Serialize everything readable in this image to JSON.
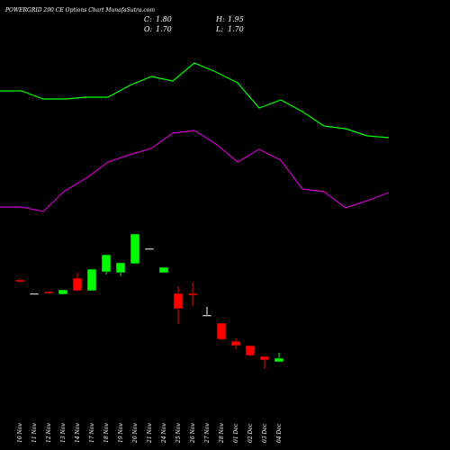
{
  "chart_data": {
    "type": "candlestick",
    "title": "POWERGRID 290  CE Options  Chart MunafaSutra.com",
    "quote": [
      {
        "label": "C:",
        "value": "1.80"
      },
      {
        "label": "H:",
        "value": "1.95"
      },
      {
        "label": "O:",
        "value": "1.70"
      },
      {
        "label": "L:",
        "value": "1.70"
      }
    ],
    "categories": [
      "10 Nov",
      "11 Nov",
      "12 Nov",
      "13 Nov",
      "14 Nov",
      "17 Nov",
      "18 Nov",
      "19 Nov",
      "20 Nov",
      "21 Nov",
      "24 Nov",
      "25 Nov",
      "26 Nov",
      "27 Nov",
      "28 Nov",
      "01 Dec",
      "02 Dec",
      "03 Dec",
      "04 Dec"
    ],
    "open": [
      3.975,
      3.6,
      3.65,
      3.575,
      4.025,
      3.675,
      4.2,
      4.175,
      4.425,
      4.85,
      4.175,
      3.6,
      3.6,
      3.0,
      2.775,
      2.275,
      2.15,
      1.85,
      1.7
    ],
    "high": [
      4.025,
      3.6,
      3.65,
      3.7,
      4.175,
      4.275,
      4.675,
      4.45,
      5.25,
      4.85,
      4.325,
      3.8,
      3.9,
      3.225,
      2.775,
      2.35,
      2.15,
      1.85,
      1.95
    ],
    "low": [
      3.9,
      3.6,
      3.6,
      3.575,
      3.675,
      3.675,
      4.125,
      4.075,
      4.425,
      4.85,
      4.175,
      2.75,
      3.25,
      3.0,
      2.3,
      2.05,
      1.85,
      1.5,
      1.7
    ],
    "close": [
      3.925,
      3.6,
      3.6,
      3.7,
      3.675,
      4.275,
      4.675,
      4.45,
      5.25,
      4.85,
      4.325,
      3.175,
      3.55,
      3.0,
      2.325,
      2.15,
      1.875,
      1.75,
      1.8
    ],
    "up_color": "#00ff00",
    "down_color": "#ff0000",
    "doji_color": "#ffffff",
    "series": [
      {
        "color": "#00ff00",
        "values": [
          9.225,
          9.225,
          9.0,
          9.0,
          9.05,
          9.05,
          9.375,
          9.625,
          9.5,
          10.0,
          9.75,
          9.45,
          8.75,
          8.975,
          8.65,
          8.25,
          8.175,
          7.975,
          7.925
        ]
      },
      {
        "color": "#cc00cc",
        "values": [
          6.0,
          6.0,
          5.875,
          6.45,
          6.8,
          7.25,
          7.45,
          7.625,
          8.05,
          8.125,
          7.75,
          7.25,
          7.6,
          7.3,
          6.5,
          6.425,
          5.975,
          6.175,
          6.4
        ]
      }
    ],
    "ylim": [
      0,
      11.75
    ]
  }
}
